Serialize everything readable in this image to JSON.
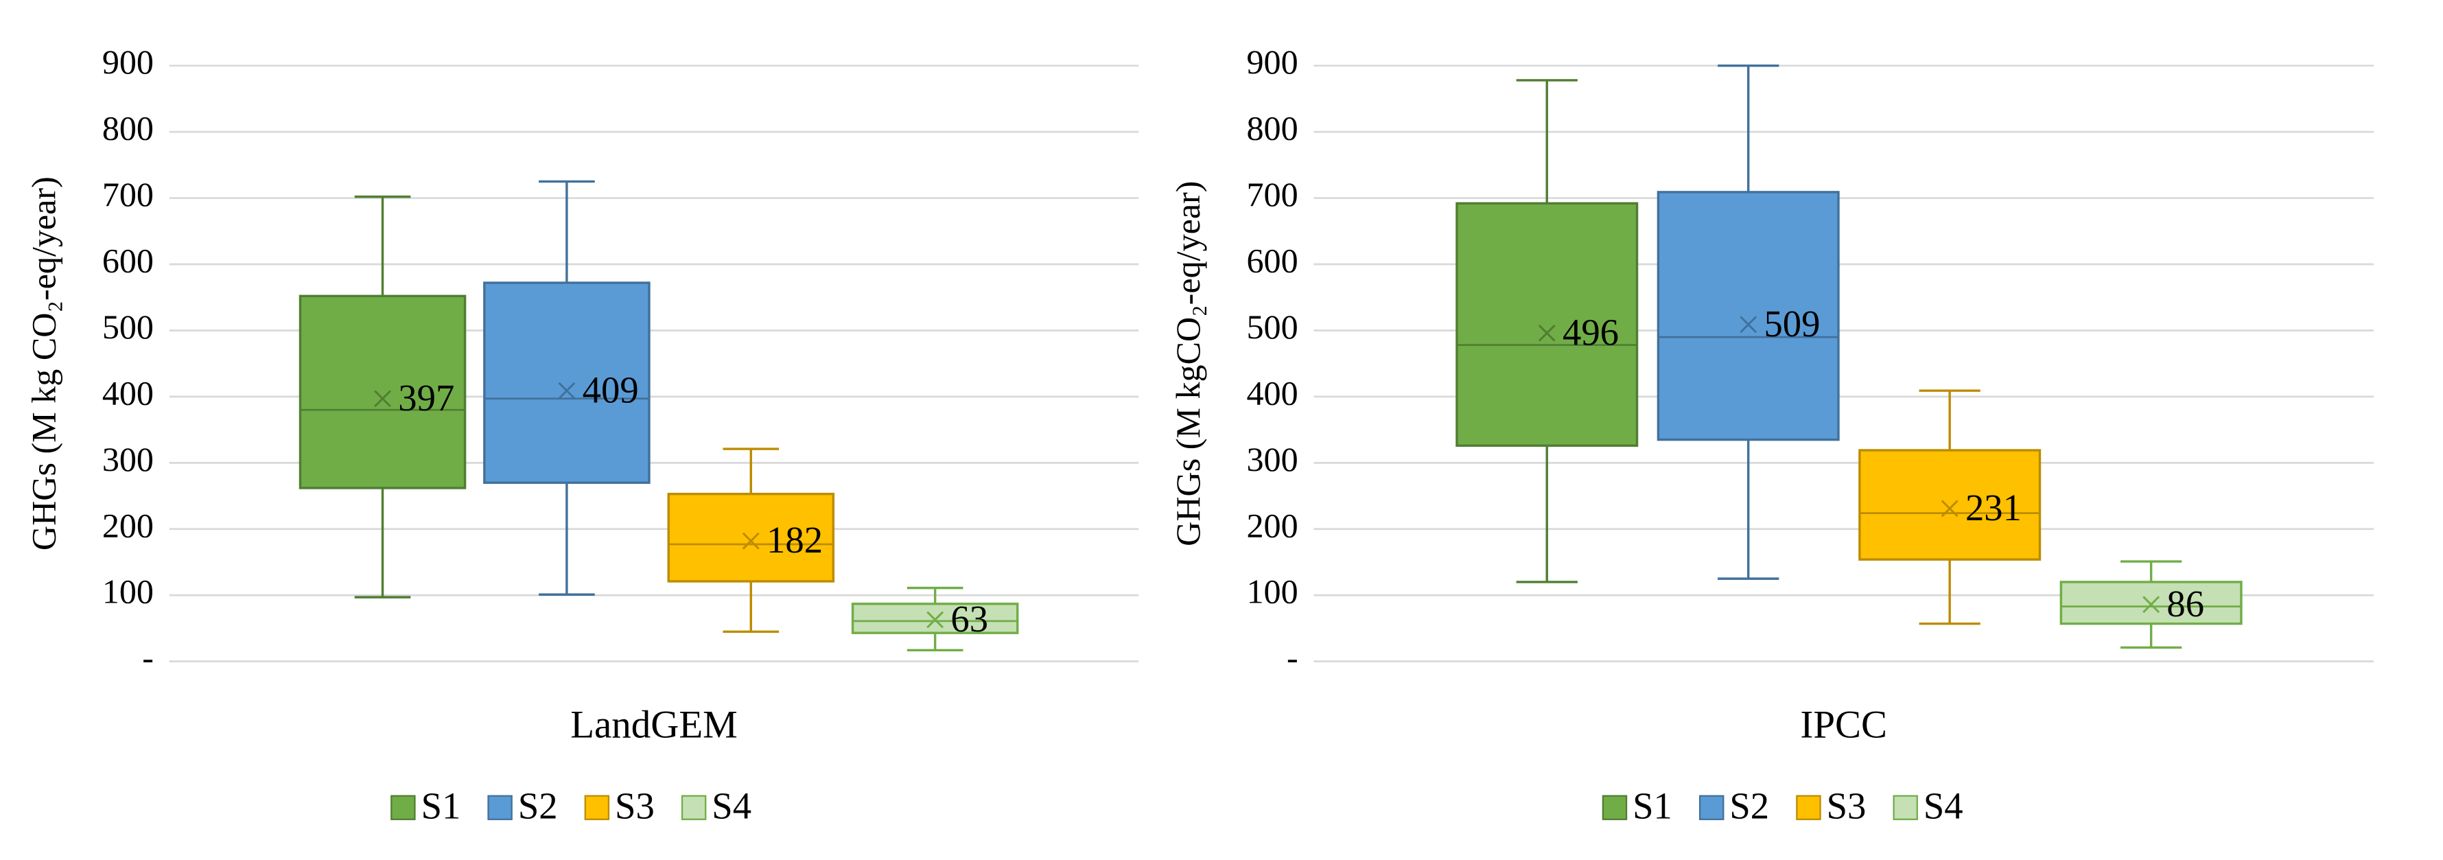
{
  "chart_data": [
    {
      "type": "box",
      "x_label": "LandGEM",
      "y_label": "GHGs (M kg CO₂-eq/year)",
      "ylim": [
        0,
        900
      ],
      "yticks": [
        {
          "value": 0,
          "label": "-"
        },
        100,
        200,
        300,
        400,
        500,
        600,
        700,
        800,
        900
      ],
      "grid": true,
      "series": [
        {
          "name": "S1",
          "color": "#70ad47",
          "edgecolor": "#507e32",
          "min": 97,
          "q1": 262,
          "median": 380,
          "q3": 552,
          "max": 702,
          "mean": 397
        },
        {
          "name": "S2",
          "color": "#5b9bd5",
          "edgecolor": "#41719c",
          "min": 101,
          "q1": 270,
          "median": 397,
          "q3": 572,
          "max": 725,
          "mean": 409
        },
        {
          "name": "S3",
          "color": "#ffc000",
          "edgecolor": "#bc8c00",
          "min": 45,
          "q1": 121,
          "median": 177,
          "q3": 253,
          "max": 321,
          "mean": 182
        },
        {
          "name": "S4",
          "color": "#c5e0b4",
          "edgecolor": "#70ad47",
          "min": 17,
          "q1": 43,
          "median": 61,
          "q3": 87,
          "max": 111,
          "mean": 63
        }
      ]
    },
    {
      "type": "box",
      "x_label": "IPCC",
      "y_label": "GHGs (M kgCO₂-eq/year)",
      "ylim": [
        0,
        900
      ],
      "yticks": [
        {
          "value": 0,
          "label": "-"
        },
        100,
        200,
        300,
        400,
        500,
        600,
        700,
        800,
        900
      ],
      "grid": true,
      "series": [
        {
          "name": "S1",
          "color": "#70ad47",
          "edgecolor": "#507e32",
          "min": 120,
          "q1": 326,
          "median": 478,
          "q3": 692,
          "max": 878,
          "mean": 496
        },
        {
          "name": "S2",
          "color": "#5b9bd5",
          "edgecolor": "#41719c",
          "min": 125,
          "q1": 335,
          "median": 490,
          "q3": 709,
          "max": 900,
          "mean": 509
        },
        {
          "name": "S3",
          "color": "#ffc000",
          "edgecolor": "#bc8c00",
          "min": 57,
          "q1": 154,
          "median": 224,
          "q3": 319,
          "max": 409,
          "mean": 231
        },
        {
          "name": "S4",
          "color": "#c5e0b4",
          "edgecolor": "#70ad47",
          "min": 21,
          "q1": 57,
          "median": 83,
          "q3": 120,
          "max": 151,
          "mean": 86
        }
      ]
    }
  ]
}
